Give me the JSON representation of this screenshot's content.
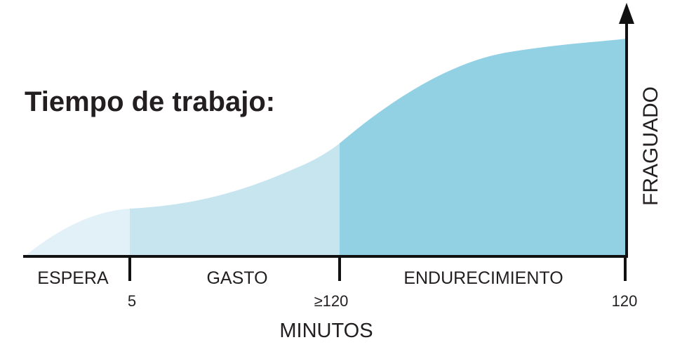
{
  "title": "Tiempo de trabajo:",
  "phases": [
    "ESPERA",
    "GASTO",
    "ENDURECIMIENTO"
  ],
  "ticks": [
    "5",
    "≥120",
    "120"
  ],
  "x_axis_label": "MINUTOS",
  "y_axis_label": "FRAGUADO"
}
